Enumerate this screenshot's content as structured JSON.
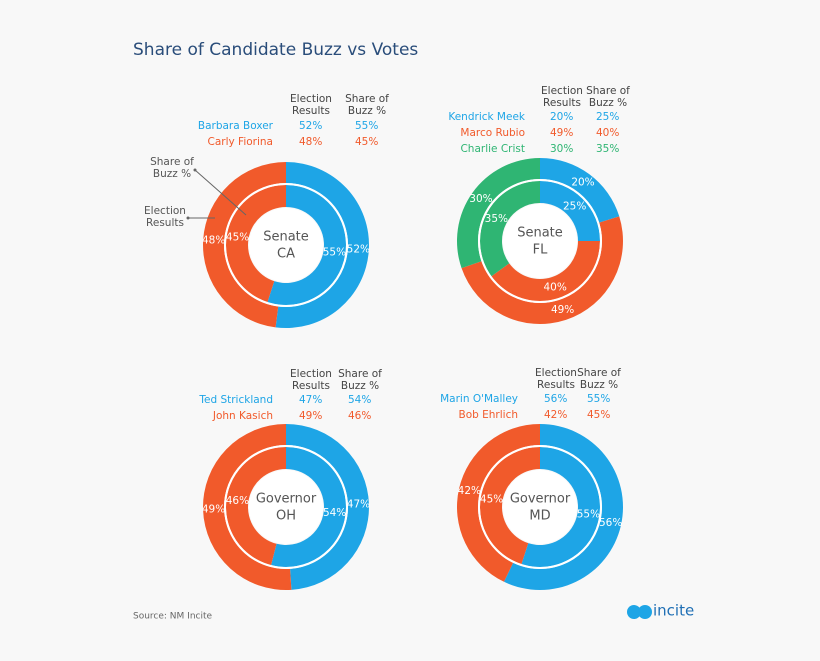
{
  "title": "Share of Candidate Buzz vs Votes",
  "source": "Source: NM Incite",
  "logo": "incite",
  "chart_data": [
    {
      "type": "donut",
      "center_label": [
        "Senate",
        "CA"
      ],
      "categories": [
        "Barbara Boxer",
        "Carly Fiorina"
      ],
      "colors": [
        "#1ea5e6",
        "#f15a2b"
      ],
      "annotations": [
        [
          "Share of",
          "Buzz %"
        ],
        [
          "Election",
          "Results"
        ]
      ],
      "series": [
        {
          "name": [
            "Election",
            "Results"
          ],
          "values": [
            52,
            48
          ],
          "value_labels": [
            "52%",
            "48%"
          ]
        },
        {
          "name": [
            "Share of",
            "Buzz %"
          ],
          "values": [
            55,
            45
          ],
          "value_labels": [
            "55%",
            "45%"
          ]
        }
      ]
    },
    {
      "type": "donut",
      "center_label": [
        "Senate",
        "FL"
      ],
      "categories": [
        "Kendrick Meek",
        "Marco Rubio",
        "Charlie Crist"
      ],
      "colors": [
        "#1ea5e6",
        "#f15a2b",
        "#2fb573"
      ],
      "series": [
        {
          "name": [
            "Election",
            "Results"
          ],
          "values": [
            20,
            49,
            30
          ],
          "value_labels": [
            "20%",
            "49%",
            "30%"
          ]
        },
        {
          "name": [
            "Share of",
            "Buzz %"
          ],
          "values": [
            25,
            40,
            35
          ],
          "value_labels": [
            "25%",
            "40%",
            "35%"
          ]
        }
      ]
    },
    {
      "type": "donut",
      "center_label": [
        "Governor",
        "OH"
      ],
      "categories": [
        "Ted Strickland",
        "John Kasich"
      ],
      "colors": [
        "#1ea5e6",
        "#f15a2b"
      ],
      "series": [
        {
          "name": [
            "Election",
            "Results"
          ],
          "values": [
            47,
            49
          ],
          "value_labels": [
            "47%",
            "49%"
          ]
        },
        {
          "name": [
            "Share of",
            "Buzz %"
          ],
          "values": [
            54,
            46
          ],
          "value_labels": [
            "54%",
            "46%"
          ]
        }
      ]
    },
    {
      "type": "donut",
      "center_label": [
        "Governor",
        "MD"
      ],
      "categories": [
        "Marin O'Malley",
        "Bob Ehrlich"
      ],
      "colors": [
        "#1ea5e6",
        "#f15a2b"
      ],
      "series": [
        {
          "name": [
            "Election",
            "Results"
          ],
          "values": [
            56,
            42
          ],
          "value_labels": [
            "56%",
            "42%"
          ]
        },
        {
          "name": [
            "Share of",
            "Buzz %"
          ],
          "values": [
            55,
            45
          ],
          "value_labels": [
            "55%",
            "45%"
          ]
        }
      ]
    }
  ]
}
